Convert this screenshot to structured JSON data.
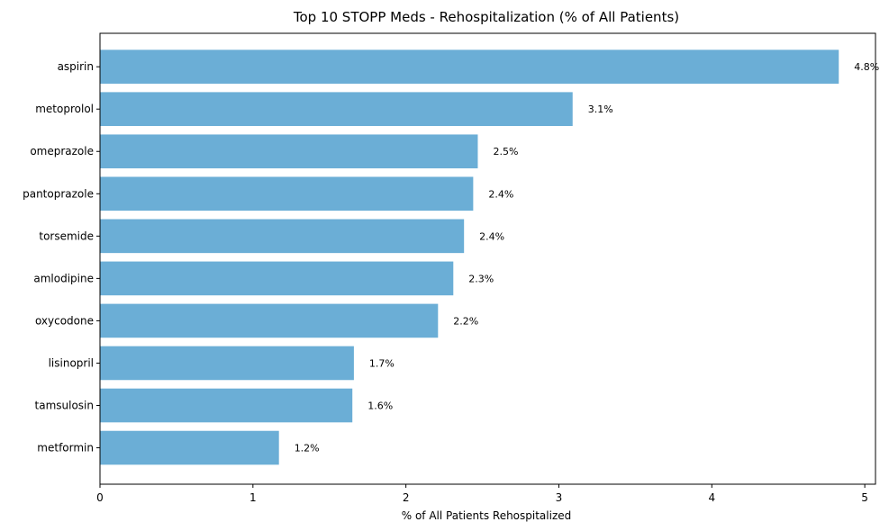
{
  "chart_data": {
    "type": "bar",
    "orientation": "horizontal",
    "title": "Top 10 STOPP Meds - Rehospitalization (% of All Patients)",
    "xlabel": "% of All Patients Rehospitalized",
    "ylabel": "",
    "categories": [
      "aspirin",
      "metoprolol",
      "omeprazole",
      "pantoprazole",
      "torsemide",
      "amlodipine",
      "oxycodone",
      "lisinopril",
      "tamsulosin",
      "metformin"
    ],
    "values": [
      4.83,
      3.09,
      2.47,
      2.44,
      2.38,
      2.31,
      2.21,
      1.66,
      1.65,
      1.17
    ],
    "data_labels": [
      "4.8%",
      "3.1%",
      "2.5%",
      "2.4%",
      "2.4%",
      "2.3%",
      "2.2%",
      "1.7%",
      "1.6%",
      "1.2%"
    ],
    "xlim": [
      0,
      5.07
    ],
    "xticks": [
      "0",
      "1",
      "2",
      "3",
      "4",
      "5"
    ],
    "bar_color": "#6baed6",
    "grid": false,
    "legend": "none"
  }
}
